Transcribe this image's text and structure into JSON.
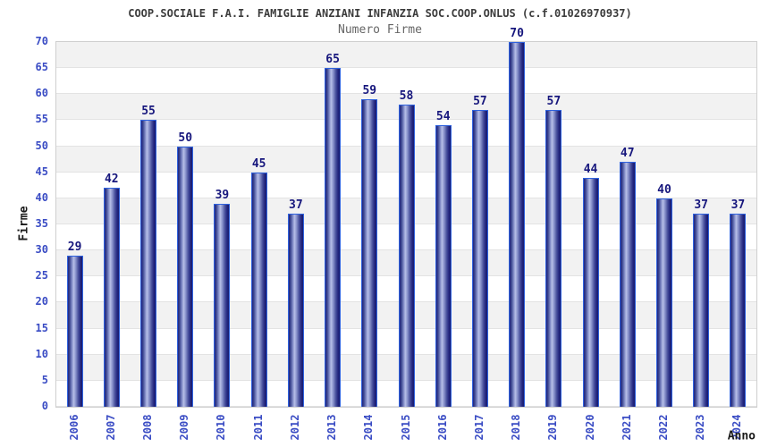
{
  "chart_data": {
    "type": "bar",
    "title": "COOP.SOCIALE F.A.I. FAMIGLIE ANZIANI INFANZIA SOC.COOP.ONLUS (c.f.01026970937)",
    "subtitle": "Numero Firme",
    "xlabel": "Anno",
    "ylabel": "Firme",
    "categories": [
      "2006",
      "2007",
      "2008",
      "2009",
      "2010",
      "2011",
      "2012",
      "2013",
      "2014",
      "2015",
      "2016",
      "2017",
      "2018",
      "2019",
      "2020",
      "2021",
      "2022",
      "2023",
      "2024"
    ],
    "values": [
      29,
      42,
      55,
      50,
      39,
      45,
      37,
      65,
      59,
      58,
      54,
      57,
      70,
      57,
      44,
      47,
      40,
      37,
      37
    ],
    "ylim": [
      0,
      70
    ],
    "ytick_step": 5,
    "grid": "horizontal bands every 5 units, alternating gray/white",
    "legend_position": "none",
    "colors": {
      "bar_edge": "#2f62de",
      "bar_dark": "#1f2280",
      "bar_highlight": "#b7bfe8",
      "value_label": "#17177d",
      "tick_label": "#3a4cc4",
      "band_gray": "#f2f2f2",
      "band_white": "#ffffff",
      "title": "#3c3c3c",
      "subtitle": "#666666"
    }
  }
}
